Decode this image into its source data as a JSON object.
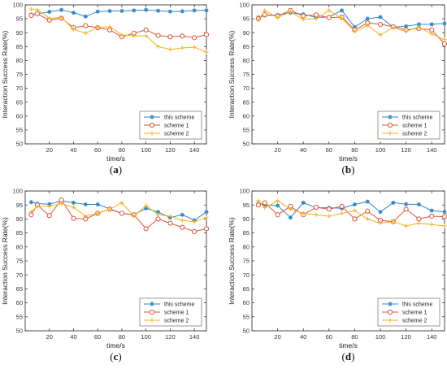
{
  "colors": {
    "this_scheme": "#2f86c6",
    "scheme_1": "#e0533a",
    "scheme_2": "#f2b21b",
    "axis": "#222222",
    "grid": "#e6e6e6"
  },
  "chart_data": [
    {
      "type": "line",
      "panel_label": "(a)",
      "xlabel": "time/s",
      "ylabel": "Interaction Success Rate(%)",
      "xlim": [
        0,
        150
      ],
      "ylim": [
        50,
        100
      ],
      "xticks": [
        20,
        40,
        60,
        80,
        100,
        120,
        140
      ],
      "yticks": [
        50,
        55,
        60,
        65,
        70,
        75,
        80,
        85,
        90,
        95,
        100
      ],
      "legend_position": "lower-right",
      "grid": false,
      "x": [
        5,
        10,
        20,
        30,
        40,
        50,
        60,
        70,
        80,
        90,
        100,
        110,
        120,
        130,
        140,
        150
      ],
      "series": [
        {
          "name": "this scheme",
          "marker": "asterisk",
          "values": [
            96.5,
            96.8,
            97.5,
            98.2,
            97.2,
            95.8,
            97.6,
            97.8,
            97.8,
            98.0,
            98.2,
            97.9,
            97.6,
            97.7,
            98.0,
            98.0
          ]
        },
        {
          "name": "scheme 1",
          "marker": "circle",
          "values": [
            96.2,
            96.8,
            94.5,
            95.2,
            91.8,
            92.5,
            91.8,
            91.0,
            88.5,
            89.8,
            91.0,
            89.0,
            88.5,
            88.8,
            88.2,
            89.3
          ]
        },
        {
          "name": "scheme 2",
          "marker": "plus",
          "values": [
            98.5,
            98.3,
            95.2,
            95.5,
            91.2,
            89.8,
            92.0,
            92.1,
            89.2,
            88.8,
            88.9,
            85.0,
            84.0,
            84.5,
            84.8,
            83.0
          ]
        }
      ]
    },
    {
      "type": "line",
      "panel_label": "(b)",
      "xlabel": "time/s",
      "ylabel": "Interaction Success Rate(%)",
      "xlim": [
        0,
        150
      ],
      "ylim": [
        50,
        100
      ],
      "xticks": [
        20,
        40,
        60,
        80,
        100,
        120,
        140
      ],
      "yticks": [
        50,
        55,
        60,
        65,
        70,
        75,
        80,
        85,
        90,
        95,
        100
      ],
      "legend_position": "lower-right",
      "grid": false,
      "x": [
        5,
        10,
        20,
        30,
        40,
        50,
        60,
        70,
        80,
        90,
        100,
        110,
        120,
        130,
        140,
        150
      ],
      "series": [
        {
          "name": "this scheme",
          "marker": "asterisk",
          "values": [
            95.5,
            96.2,
            96.4,
            97.2,
            96.6,
            95.5,
            95.6,
            98.0,
            92.0,
            95.0,
            95.6,
            92.0,
            92.3,
            93.0,
            93.0,
            93.3
          ]
        },
        {
          "name": "scheme 1",
          "marker": "circle",
          "values": [
            95.0,
            96.5,
            96.0,
            98.0,
            96.0,
            96.4,
            95.4,
            95.6,
            91.0,
            93.5,
            93.0,
            92.2,
            91.0,
            91.5,
            91.0,
            86.0
          ]
        },
        {
          "name": "scheme 2",
          "marker": "plus",
          "values": [
            94.5,
            98.0,
            95.4,
            97.5,
            94.8,
            95.0,
            98.0,
            95.2,
            90.4,
            92.6,
            89.2,
            91.8,
            90.5,
            92.0,
            89.6,
            87.5
          ]
        }
      ]
    },
    {
      "type": "line",
      "panel_label": "(c)",
      "xlabel": "time/s",
      "ylabel": "Interaction Success Rate(%)",
      "xlim": [
        0,
        150
      ],
      "ylim": [
        50,
        100
      ],
      "xticks": [
        20,
        40,
        60,
        80,
        100,
        120,
        140
      ],
      "yticks": [
        50,
        55,
        60,
        65,
        70,
        75,
        80,
        85,
        90,
        95,
        100
      ],
      "legend_position": "lower-right",
      "grid": false,
      "x": [
        5,
        10,
        20,
        30,
        40,
        50,
        60,
        70,
        80,
        90,
        100,
        110,
        120,
        130,
        140,
        150
      ],
      "series": [
        {
          "name": "this scheme",
          "marker": "asterisk",
          "values": [
            96.0,
            95.5,
            95.3,
            96.5,
            95.8,
            95.2,
            95.2,
            93.6,
            92.0,
            91.5,
            93.8,
            92.5,
            90.5,
            91.5,
            89.5,
            92.5
          ]
        },
        {
          "name": "scheme 1",
          "marker": "circle",
          "values": [
            91.5,
            95.0,
            91.2,
            96.8,
            90.2,
            90.0,
            92.0,
            93.5,
            92.0,
            91.5,
            86.5,
            90.0,
            88.5,
            87.0,
            85.5,
            86.5
          ]
        },
        {
          "name": "scheme 2",
          "marker": "plus",
          "values": [
            92.5,
            94.5,
            94.5,
            95.5,
            94.2,
            91.0,
            92.0,
            93.5,
            95.8,
            91.0,
            94.8,
            91.5,
            91.0,
            89.5,
            89.0,
            90.5
          ]
        }
      ]
    },
    {
      "type": "line",
      "panel_label": "(d)",
      "xlabel": "time/s",
      "ylabel": "Interaction Success Rate(%)",
      "xlim": [
        0,
        150
      ],
      "ylim": [
        50,
        100
      ],
      "xticks": [
        20,
        40,
        60,
        80,
        100,
        120,
        140
      ],
      "yticks": [
        50,
        55,
        60,
        65,
        70,
        75,
        80,
        85,
        90,
        95,
        100
      ],
      "legend_position": "lower-right",
      "grid": false,
      "x": [
        5,
        10,
        20,
        30,
        40,
        50,
        60,
        70,
        80,
        90,
        100,
        110,
        120,
        130,
        140,
        150
      ],
      "series": [
        {
          "name": "this scheme",
          "marker": "asterisk",
          "values": [
            95.5,
            95.0,
            94.8,
            90.5,
            95.8,
            94.0,
            94.0,
            93.8,
            95.2,
            96.2,
            92.5,
            95.8,
            95.3,
            95.2,
            93.0,
            92.5
          ]
        },
        {
          "name": "scheme 1",
          "marker": "circle",
          "values": [
            95.0,
            95.8,
            91.5,
            94.5,
            91.5,
            94.2,
            93.5,
            94.5,
            90.0,
            92.8,
            89.5,
            89.0,
            93.5,
            90.0,
            91.0,
            90.8
          ]
        },
        {
          "name": "scheme 2",
          "marker": "plus",
          "values": [
            96.5,
            94.0,
            96.5,
            93.5,
            92.0,
            91.5,
            91.0,
            92.0,
            93.0,
            90.0,
            88.5,
            89.0,
            87.5,
            88.5,
            88.0,
            87.5
          ]
        }
      ]
    }
  ]
}
